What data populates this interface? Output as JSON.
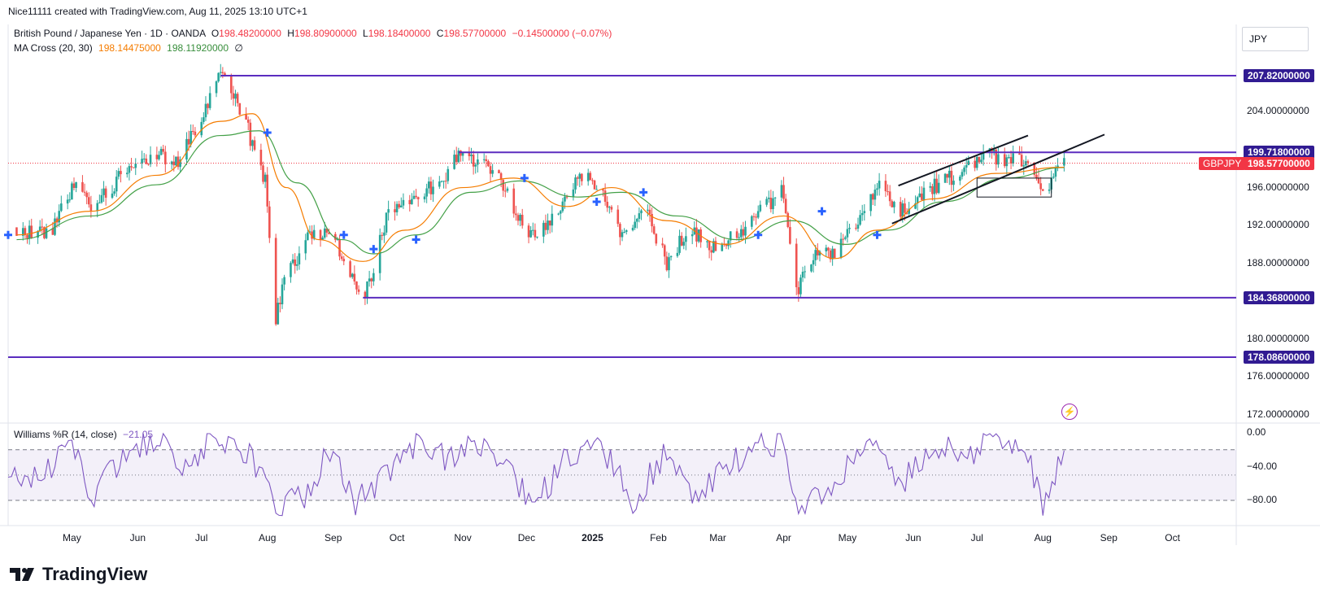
{
  "header": {
    "credit": "Nice11111 created with TradingView.com, Aug 11, 2025 13:10 UTC+1"
  },
  "legend": {
    "symbol_name": "British Pound / Japanese Yen · 1D · OANDA",
    "ohlc": {
      "o_label": "O",
      "o_value": "198.48200000",
      "h_label": "H",
      "h_value": "198.80900000",
      "l_label": "L",
      "l_value": "198.18400000",
      "c_label": "C",
      "c_value": "198.57700000",
      "change": "−0.14500000 (−0.07%)"
    },
    "ma_title": "MA Cross (20, 30)",
    "ma_fast_value": "198.14475000",
    "ma_slow_value": "198.11920000",
    "ma_extra": "∅",
    "wr_title": "Williams %R (14, close)",
    "wr_value": "−21.05"
  },
  "currency_button": "JPY",
  "price_axis": {
    "ticks": [
      "204.00000000",
      "196.00000000",
      "192.00000000",
      "188.00000000",
      "180.00000000",
      "176.00000000",
      "172.00000000"
    ],
    "level_tags": [
      "207.82000000",
      "199.71800000",
      "184.36800000",
      "178.08600000"
    ],
    "last_price": "198.57700000",
    "symbol_tag": "GBPJPY"
  },
  "osc_axis": {
    "ticks": [
      "0.00",
      "−40.00",
      "−80.00"
    ]
  },
  "time_axis": {
    "labels": [
      "May",
      "Jun",
      "Jul",
      "Aug",
      "Sep",
      "Oct",
      "Nov",
      "Dec",
      "2025",
      "Feb",
      "Mar",
      "Apr",
      "May",
      "Jun",
      "Jul",
      "Aug",
      "Sep",
      "Oct"
    ]
  },
  "branding": {
    "logo_text": "TradingView"
  },
  "colors": {
    "bull": "#26a69a",
    "bear": "#ef5350",
    "ma_fast": "#f57c00",
    "ma_slow": "#43a047",
    "level_line": "#5b2dbf",
    "wr_line": "#7e57c2",
    "cross_marker": "#2962ff",
    "last_price_line": "#f23645"
  },
  "chart_data": [
    {
      "type": "candlestick",
      "title": "British Pound / Japanese Yen · 1D · OANDA",
      "x_range": [
        "2024-04-01",
        "2025-10-31"
      ],
      "ylim": [
        172,
        209
      ],
      "horizontal_levels": [
        207.82,
        199.718,
        184.368,
        178.086
      ],
      "last_price": 198.577,
      "close_path": [
        {
          "date": "2024-04-05",
          "value": 191.8
        },
        {
          "date": "2024-04-20",
          "value": 191.0
        },
        {
          "date": "2024-05-02",
          "value": 196.2
        },
        {
          "date": "2024-05-10",
          "value": 193.6
        },
        {
          "date": "2024-05-25",
          "value": 197.4
        },
        {
          "date": "2024-06-08",
          "value": 199.5
        },
        {
          "date": "2024-06-20",
          "value": 198.8
        },
        {
          "date": "2024-07-01",
          "value": 203.0
        },
        {
          "date": "2024-07-10",
          "value": 207.8
        },
        {
          "date": "2024-07-20",
          "value": 204.0
        },
        {
          "date": "2024-07-31",
          "value": 196.5
        },
        {
          "date": "2024-08-05",
          "value": 182.0
        },
        {
          "date": "2024-08-10",
          "value": 187.0
        },
        {
          "date": "2024-08-20",
          "value": 190.5
        },
        {
          "date": "2024-08-31",
          "value": 191.5
        },
        {
          "date": "2024-09-10",
          "value": 186.0
        },
        {
          "date": "2024-09-16",
          "value": 184.4
        },
        {
          "date": "2024-09-27",
          "value": 193.5
        },
        {
          "date": "2024-10-10",
          "value": 195.0
        },
        {
          "date": "2024-10-22",
          "value": 197.0
        },
        {
          "date": "2024-11-01",
          "value": 199.7
        },
        {
          "date": "2024-11-15",
          "value": 198.0
        },
        {
          "date": "2024-11-25",
          "value": 194.0
        },
        {
          "date": "2024-12-05",
          "value": 190.5
        },
        {
          "date": "2024-12-15",
          "value": 193.5
        },
        {
          "date": "2024-12-26",
          "value": 197.5
        },
        {
          "date": "2025-01-05",
          "value": 196.0
        },
        {
          "date": "2025-01-15",
          "value": 190.5
        },
        {
          "date": "2025-01-25",
          "value": 194.0
        },
        {
          "date": "2025-02-05",
          "value": 188.0
        },
        {
          "date": "2025-02-15",
          "value": 191.5
        },
        {
          "date": "2025-02-28",
          "value": 189.5
        },
        {
          "date": "2025-03-10",
          "value": 191.0
        },
        {
          "date": "2025-03-20",
          "value": 193.5
        },
        {
          "date": "2025-03-31",
          "value": 195.5
        },
        {
          "date": "2025-04-07",
          "value": 185.0
        },
        {
          "date": "2025-04-15",
          "value": 188.5
        },
        {
          "date": "2025-04-25",
          "value": 189.0
        },
        {
          "date": "2025-05-05",
          "value": 192.0
        },
        {
          "date": "2025-05-15",
          "value": 196.5
        },
        {
          "date": "2025-05-25",
          "value": 193.0
        },
        {
          "date": "2025-06-05",
          "value": 195.5
        },
        {
          "date": "2025-06-15",
          "value": 196.5
        },
        {
          "date": "2025-06-25",
          "value": 198.0
        },
        {
          "date": "2025-07-05",
          "value": 199.5
        },
        {
          "date": "2025-07-15",
          "value": 199.0
        },
        {
          "date": "2025-07-25",
          "value": 198.5
        },
        {
          "date": "2025-08-01",
          "value": 195.5
        },
        {
          "date": "2025-08-11",
          "value": 198.577
        }
      ],
      "ma_fast_path": [
        {
          "date": "2024-04-05",
          "value": 191.0
        },
        {
          "date": "2024-05-10",
          "value": 193.5
        },
        {
          "date": "2024-06-10",
          "value": 197.3
        },
        {
          "date": "2024-07-10",
          "value": 203.0
        },
        {
          "date": "2024-07-25",
          "value": 203.8
        },
        {
          "date": "2024-08-10",
          "value": 196.0
        },
        {
          "date": "2024-08-25",
          "value": 190.5
        },
        {
          "date": "2024-09-15",
          "value": 188.2
        },
        {
          "date": "2024-10-05",
          "value": 191.5
        },
        {
          "date": "2024-11-01",
          "value": 196.0
        },
        {
          "date": "2024-11-25",
          "value": 197.0
        },
        {
          "date": "2024-12-20",
          "value": 194.0
        },
        {
          "date": "2025-01-10",
          "value": 196.0
        },
        {
          "date": "2025-02-05",
          "value": 192.5
        },
        {
          "date": "2025-03-05",
          "value": 190.0
        },
        {
          "date": "2025-04-01",
          "value": 193.0
        },
        {
          "date": "2025-04-25",
          "value": 188.5
        },
        {
          "date": "2025-05-15",
          "value": 191.5
        },
        {
          "date": "2025-06-10",
          "value": 194.8
        },
        {
          "date": "2025-07-10",
          "value": 197.5
        },
        {
          "date": "2025-08-11",
          "value": 198.14475
        }
      ],
      "ma_slow_path": [
        {
          "date": "2024-04-05",
          "value": 190.5
        },
        {
          "date": "2024-05-10",
          "value": 193.0
        },
        {
          "date": "2024-06-10",
          "value": 196.3
        },
        {
          "date": "2024-07-10",
          "value": 201.5
        },
        {
          "date": "2024-07-28",
          "value": 202.0
        },
        {
          "date": "2024-08-15",
          "value": 196.5
        },
        {
          "date": "2024-09-05",
          "value": 190.5
        },
        {
          "date": "2024-09-20",
          "value": 189.0
        },
        {
          "date": "2024-10-10",
          "value": 191.0
        },
        {
          "date": "2024-11-05",
          "value": 195.5
        },
        {
          "date": "2024-11-28",
          "value": 196.7
        },
        {
          "date": "2024-12-25",
          "value": 195.0
        },
        {
          "date": "2025-01-15",
          "value": 195.5
        },
        {
          "date": "2025-02-10",
          "value": 193.0
        },
        {
          "date": "2025-03-10",
          "value": 190.5
        },
        {
          "date": "2025-04-05",
          "value": 192.5
        },
        {
          "date": "2025-04-30",
          "value": 190.0
        },
        {
          "date": "2025-05-20",
          "value": 191.5
        },
        {
          "date": "2025-06-15",
          "value": 194.5
        },
        {
          "date": "2025-07-15",
          "value": 197.0
        },
        {
          "date": "2025-08-11",
          "value": 198.1192
        }
      ],
      "cross_markers": [
        {
          "date": "2024-04-01",
          "value": 191.0
        },
        {
          "date": "2024-08-01",
          "value": 201.8
        },
        {
          "date": "2024-09-06",
          "value": 191.0
        },
        {
          "date": "2024-09-20",
          "value": 189.5
        },
        {
          "date": "2024-10-10",
          "value": 190.5
        },
        {
          "date": "2024-11-30",
          "value": 197.0
        },
        {
          "date": "2025-01-03",
          "value": 194.5
        },
        {
          "date": "2025-01-25",
          "value": 195.5
        },
        {
          "date": "2025-03-20",
          "value": 191.0
        },
        {
          "date": "2025-04-19",
          "value": 193.5
        },
        {
          "date": "2025-05-15",
          "value": 191.0
        }
      ],
      "trend_lines": [
        {
          "from": {
            "date": "2025-05-25",
            "value": 196.2
          },
          "to": {
            "date": "2025-07-25",
            "value": 201.5
          }
        },
        {
          "from": {
            "date": "2025-05-22",
            "value": 192.2
          },
          "to": {
            "date": "2025-08-30",
            "value": 201.6
          }
        }
      ],
      "rectangle": {
        "from": {
          "date": "2025-07-01",
          "value": 197.0
        },
        "to": {
          "date": "2025-08-05",
          "value": 195.0
        }
      }
    },
    {
      "type": "line",
      "title": "Williams %R (14, close)",
      "ylim": [
        -100,
        0
      ],
      "bands": [
        -20,
        -50,
        -80
      ],
      "x_range": [
        "2024-04-01",
        "2025-10-31"
      ],
      "series": [
        {
          "name": "Williams %R (14, close)",
          "x": [
            "2024-04-01",
            "2024-04-15",
            "2024-05-01",
            "2024-05-10",
            "2024-05-25",
            "2024-06-10",
            "2024-06-25",
            "2024-07-05",
            "2024-07-15",
            "2024-07-25",
            "2024-08-05",
            "2024-08-20",
            "2024-09-01",
            "2024-09-10",
            "2024-09-25",
            "2024-10-10",
            "2024-10-25",
            "2024-11-05",
            "2024-11-20",
            "2024-12-05",
            "2024-12-20",
            "2025-01-05",
            "2025-01-20",
            "2025-02-05",
            "2025-02-20",
            "2025-03-05",
            "2025-03-20",
            "2025-04-01",
            "2025-04-08",
            "2025-04-25",
            "2025-05-10",
            "2025-05-25",
            "2025-06-10",
            "2025-06-25",
            "2025-07-10",
            "2025-07-25",
            "2025-08-01",
            "2025-08-11"
          ],
          "values": [
            -35,
            -60,
            -10,
            -80,
            -25,
            -5,
            -40,
            -5,
            -10,
            -30,
            -90,
            -70,
            -10,
            -85,
            -50,
            -10,
            -30,
            -5,
            -40,
            -85,
            -30,
            -10,
            -85,
            -20,
            -80,
            -40,
            -15,
            -10,
            -90,
            -60,
            -10,
            -65,
            -15,
            -25,
            -10,
            -30,
            -90,
            -21.05
          ]
        }
      ]
    }
  ]
}
